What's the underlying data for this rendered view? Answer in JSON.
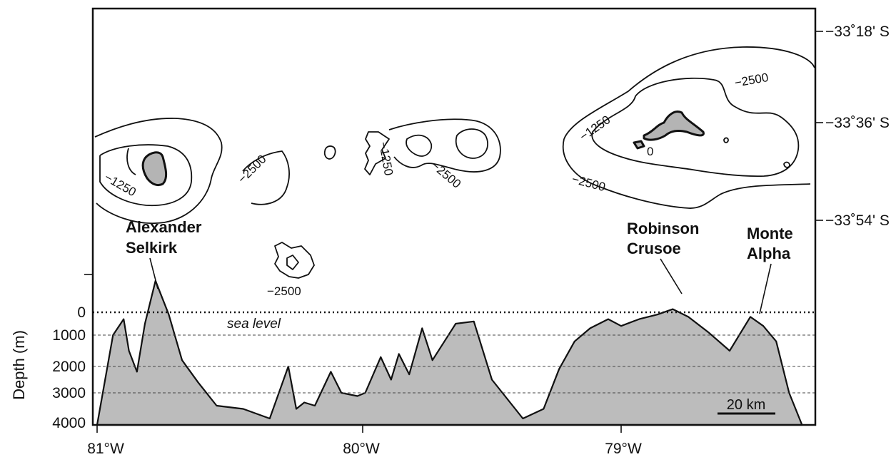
{
  "map": {
    "latitude_labels": [
      "−33˚18' S",
      "−33˚36' S",
      "−33˚54' S"
    ],
    "longitude_labels": [
      "81°W",
      "80°W",
      "79°W"
    ],
    "islands": {
      "alexander": [
        "Alexander",
        "Selkirk"
      ],
      "robinson": [
        "Robinson",
        "Crusoe"
      ],
      "monte": [
        "Monte",
        "Alpha"
      ]
    },
    "contour_labels": {
      "c1": "−1250",
      "c2": "−2500",
      "c3": "−1250",
      "c4": "−2500",
      "c5": "−2500",
      "c6": "−1250",
      "c7": "0",
      "c8": "−2500",
      "c9": "−2500"
    },
    "scale_bar": "20 km",
    "colors": {
      "land_fill": "#b4b4b4",
      "ink": "#111111"
    }
  },
  "profile": {
    "axis_label": "Depth (m)",
    "depth_ticks": [
      "0",
      "1000",
      "2000",
      "3000",
      "4000"
    ],
    "sea_level_label": "sea level"
  },
  "chart_data": {
    "type": "area",
    "ylabel": "Depth (m)",
    "ylim": [
      4000,
      -1200
    ],
    "x_unit": "longitude °W",
    "x": [
      81.0,
      80.94,
      80.9,
      80.88,
      80.85,
      80.82,
      80.78,
      80.73,
      80.68,
      80.62,
      80.55,
      80.45,
      80.35,
      80.28,
      80.25,
      80.22,
      80.18,
      80.12,
      80.08,
      80.02,
      79.99,
      79.93,
      79.89,
      79.86,
      79.82,
      79.77,
      79.73,
      79.64,
      79.57,
      79.5,
      79.38,
      79.3,
      79.24,
      79.18,
      79.12,
      79.05,
      79.0,
      78.93,
      78.86,
      78.8,
      78.74,
      78.66,
      78.58,
      78.5,
      78.45,
      78.4,
      78.35,
      78.3
    ],
    "depth": [
      4000,
      1000,
      300,
      1500,
      2200,
      500,
      -1000,
      100,
      1800,
      2600,
      3400,
      3500,
      3800,
      2000,
      3500,
      3300,
      3400,
      2200,
      3000,
      3100,
      3000,
      1700,
      2500,
      1600,
      2300,
      700,
      1800,
      500,
      400,
      2500,
      3800,
      3500,
      2100,
      1200,
      700,
      300,
      600,
      300,
      100,
      -100,
      200,
      900,
      1500,
      200,
      600,
      1200,
      3000,
      4000
    ]
  }
}
